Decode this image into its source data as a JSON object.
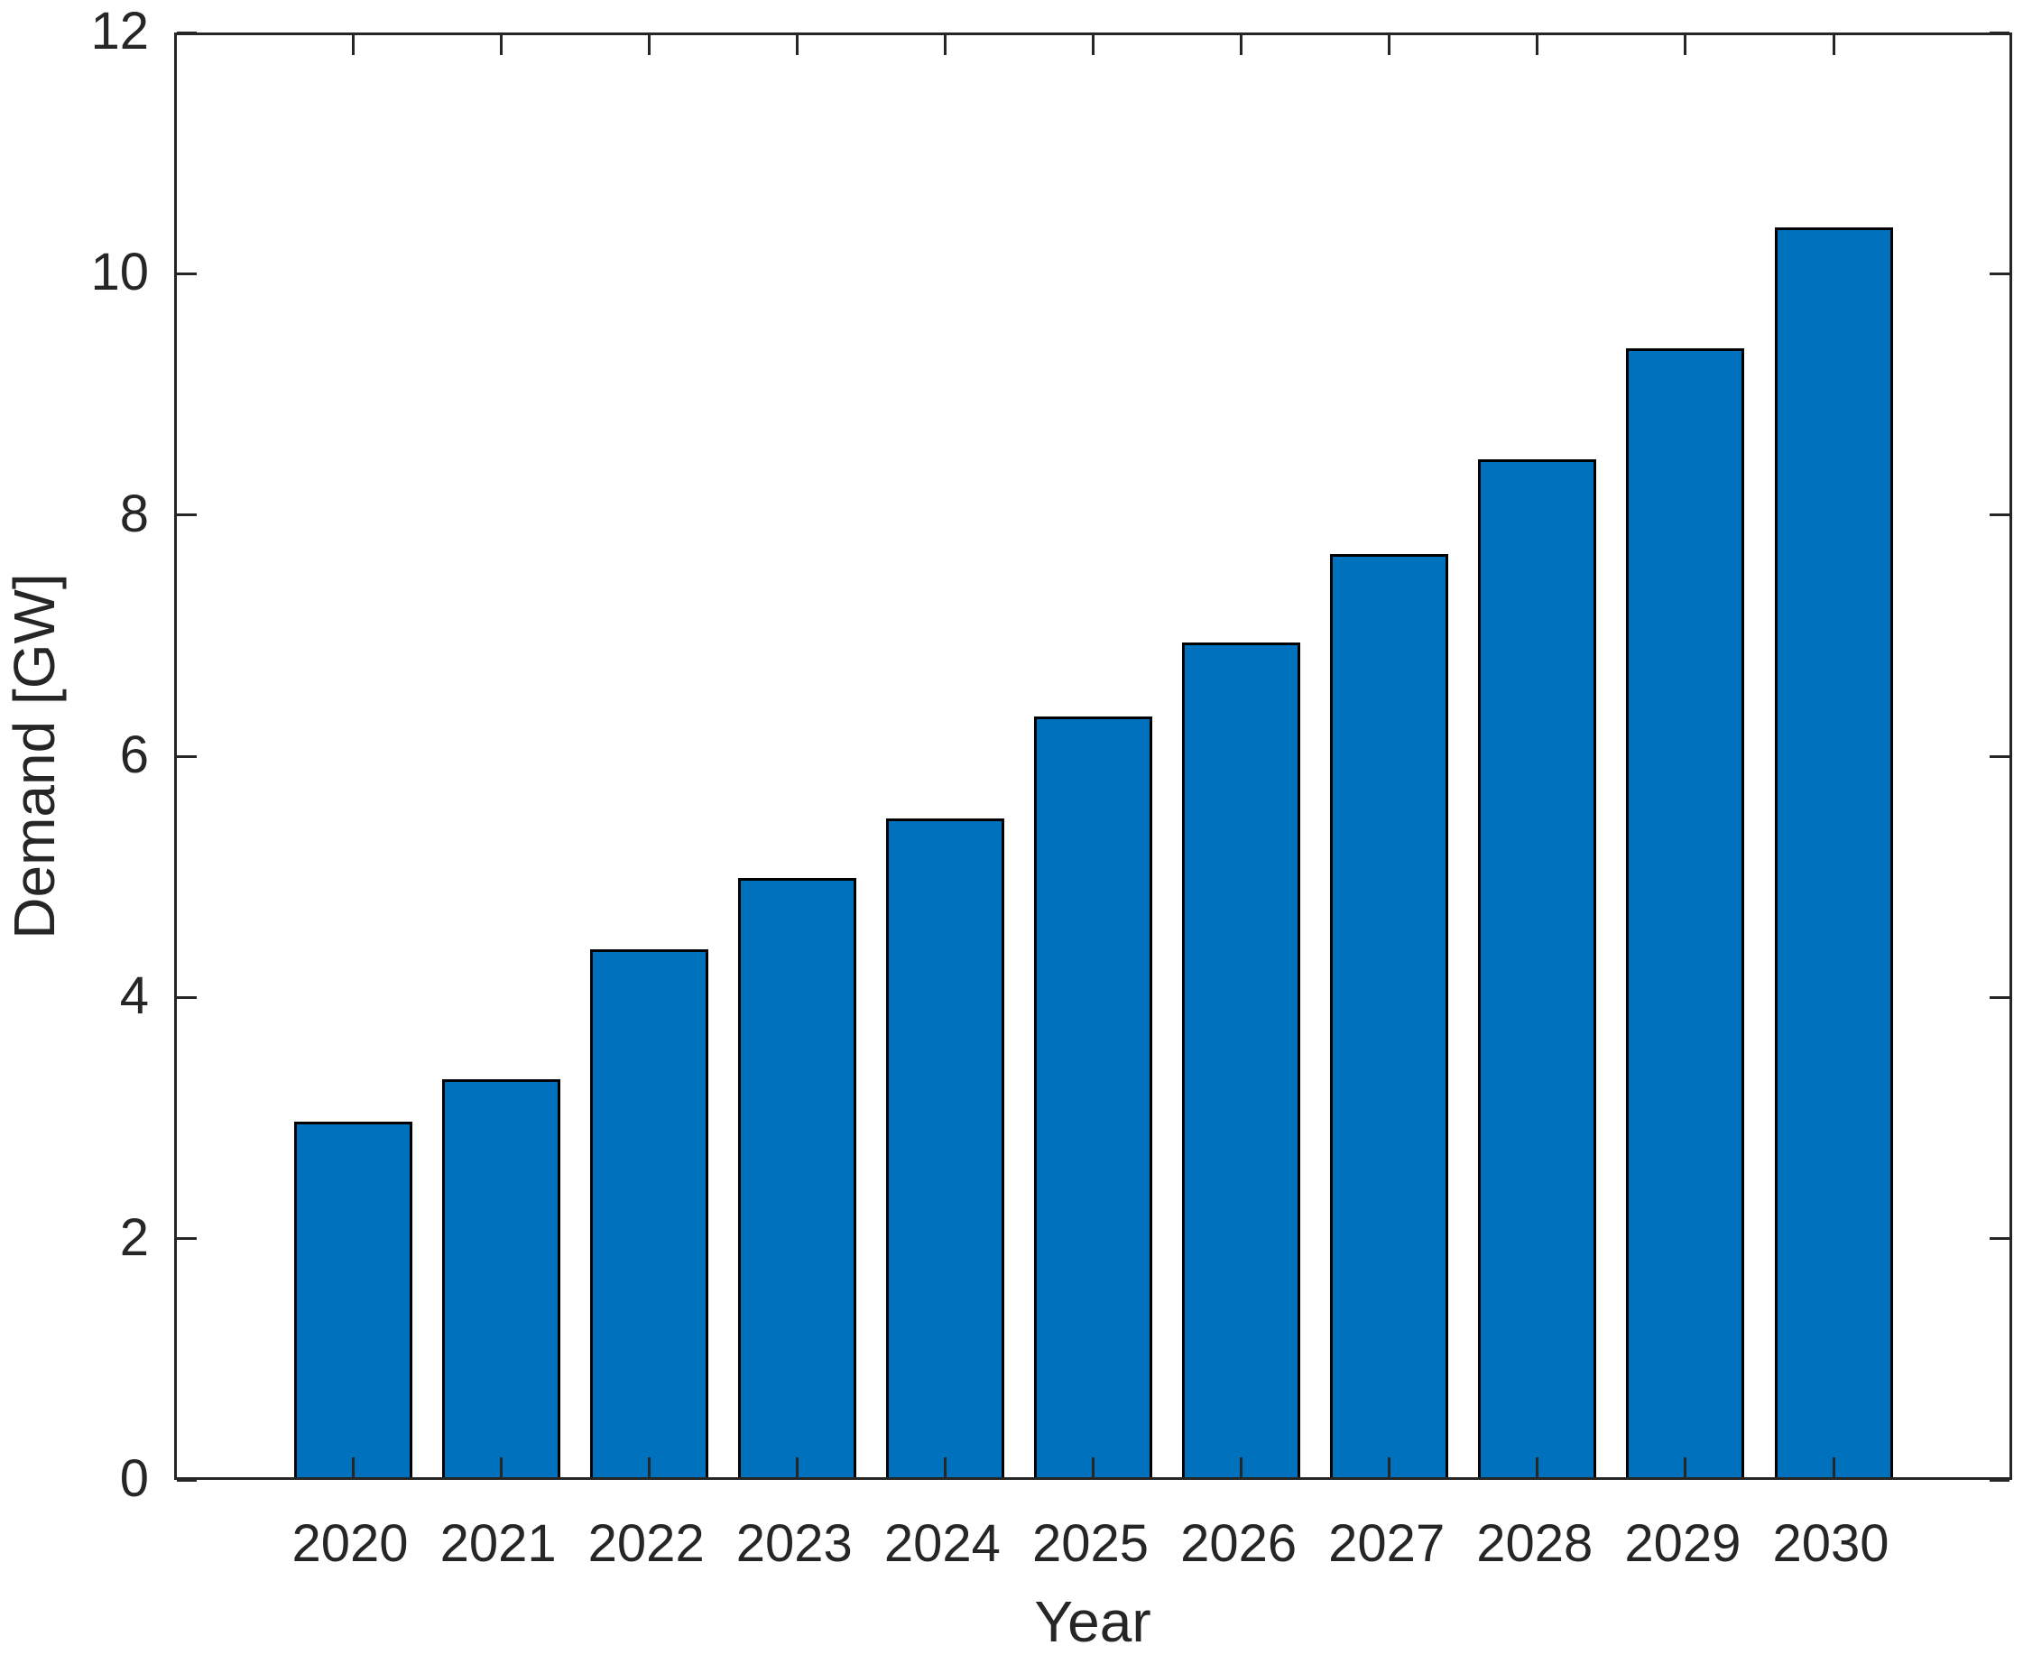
{
  "chart_data": {
    "type": "bar",
    "title": "",
    "xlabel": "Year",
    "ylabel": "Demand [GW]",
    "categories": [
      "2020",
      "2021",
      "2022",
      "2023",
      "2024",
      "2025",
      "2026",
      "2027",
      "2028",
      "2029",
      "2030"
    ],
    "values": [
      2.95,
      3.3,
      4.38,
      4.97,
      5.46,
      6.31,
      6.92,
      7.65,
      8.44,
      9.36,
      10.36
    ],
    "series_name": "Demand",
    "ylim": [
      0,
      12
    ],
    "yticks": [
      0,
      2,
      4,
      6,
      8,
      10,
      12
    ],
    "grid": false,
    "legend": null,
    "layout": {
      "box_on": true,
      "tick_direction": "in",
      "ticks_on_all_sides": true
    },
    "colors": {
      "bar_fill": "#0072BD",
      "bar_edge": "#000000",
      "axis": "#262626",
      "text": "#262626",
      "background": "#FFFFFF"
    }
  }
}
